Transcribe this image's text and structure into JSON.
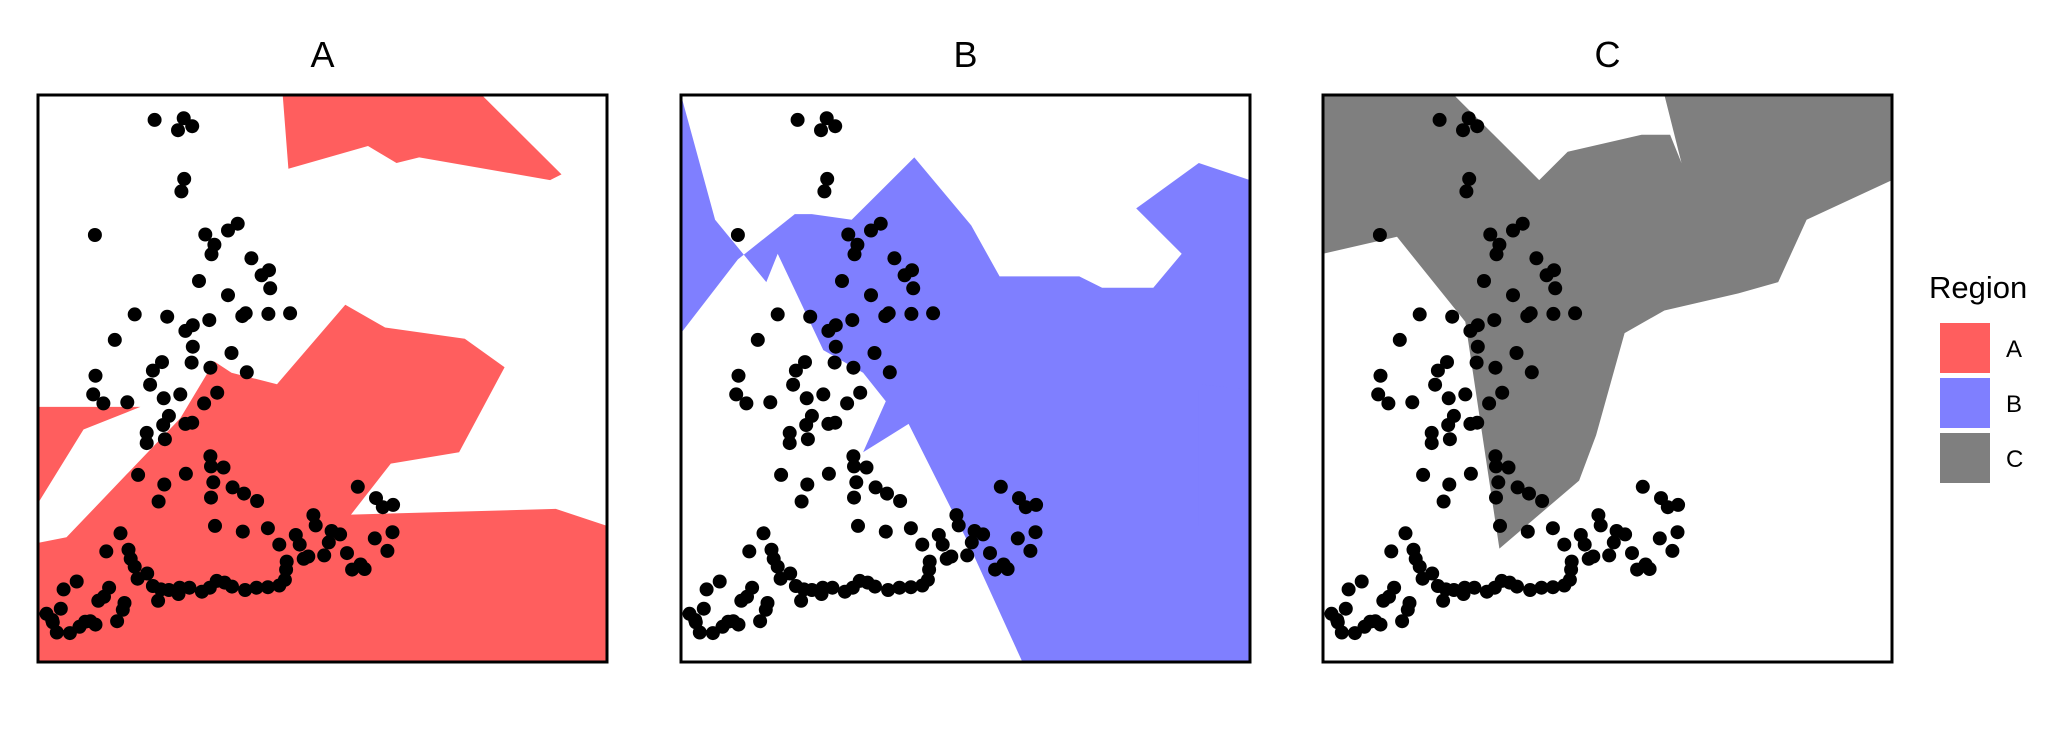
{
  "chart_data": {
    "type": "scatter",
    "panels": [
      {
        "title": "A",
        "fill_key": "A"
      },
      {
        "title": "B",
        "fill_key": "B"
      },
      {
        "title": "C",
        "fill_key": "C"
      }
    ],
    "xlim": [
      0,
      100
    ],
    "ylim": [
      0,
      100
    ],
    "grid": false,
    "legend": {
      "title": "Region",
      "position": "right",
      "items": [
        {
          "label": "A",
          "color": "#ff5e5e"
        },
        {
          "label": "B",
          "color": "#7f7fff"
        },
        {
          "label": "C",
          "color": "#7f7f7f"
        }
      ]
    },
    "regions": {
      "A": [
        [
          [
            0,
            100
          ],
          [
            0,
            45
          ],
          [
            18,
            45
          ],
          [
            8,
            41
          ],
          [
            0,
            28
          ],
          [
            0,
            21
          ],
          [
            5,
            22
          ],
          [
            25,
            43
          ],
          [
            31,
            53
          ],
          [
            34,
            51
          ],
          [
            42,
            49
          ],
          [
            54,
            63
          ],
          [
            61,
            59
          ],
          [
            75,
            57
          ],
          [
            82,
            52
          ],
          [
            74,
            37
          ],
          [
            62,
            35
          ],
          [
            55,
            26
          ],
          [
            91,
            27
          ],
          [
            100,
            24
          ],
          [
            100,
            0
          ],
          [
            0,
            0
          ]
        ],
        [
          [
            29,
            100
          ],
          [
            35,
            100
          ],
          [
            43,
            100
          ],
          [
            44,
            87
          ],
          [
            58,
            91
          ],
          [
            63,
            88
          ],
          [
            67,
            89
          ],
          [
            90,
            85
          ],
          [
            92,
            86
          ],
          [
            78,
            100
          ]
        ]
      ],
      "B": [
        [
          [
            0,
            100
          ],
          [
            0,
            58
          ],
          [
            10,
            71
          ],
          [
            20,
            79
          ],
          [
            23,
            79
          ],
          [
            30,
            78
          ],
          [
            41,
            89
          ],
          [
            51,
            77
          ],
          [
            56,
            68
          ],
          [
            70,
            68
          ],
          [
            74,
            66
          ],
          [
            83,
            66
          ],
          [
            88,
            72
          ],
          [
            80,
            80
          ],
          [
            91,
            88
          ],
          [
            100,
            85
          ],
          [
            100,
            0
          ],
          [
            60,
            0
          ],
          [
            50,
            22
          ],
          [
            40,
            42
          ],
          [
            32,
            37
          ],
          [
            36,
            46
          ],
          [
            32,
            51
          ],
          [
            25,
            55
          ],
          [
            17,
            72
          ],
          [
            15,
            67
          ],
          [
            6,
            78
          ],
          [
            0,
            100
          ]
        ],
        [
          [
            91,
            24
          ],
          [
            100,
            24
          ],
          [
            100,
            48
          ],
          [
            91,
            49
          ]
        ]
      ],
      "C": [
        [
          [
            0,
            100
          ],
          [
            23,
            100
          ],
          [
            38,
            85
          ],
          [
            43,
            90
          ],
          [
            56,
            93
          ],
          [
            61,
            93
          ],
          [
            63,
            88
          ],
          [
            60,
            100
          ],
          [
            100,
            100
          ],
          [
            100,
            85
          ],
          [
            85,
            78
          ],
          [
            80,
            67
          ],
          [
            73,
            65
          ],
          [
            60,
            62
          ],
          [
            53,
            58
          ],
          [
            48,
            40
          ],
          [
            45,
            32
          ],
          [
            31,
            20
          ],
          [
            25,
            60
          ],
          [
            13,
            75
          ],
          [
            0,
            72
          ]
        ]
      ]
    },
    "points": [
      [
        20.5,
        95.6
      ],
      [
        27.1,
        94.5
      ],
      [
        25.6,
        95.9
      ],
      [
        24.6,
        93.8
      ],
      [
        25.7,
        85.2
      ],
      [
        25.2,
        83.0
      ],
      [
        10.0,
        75.3
      ],
      [
        35.1,
        77.3
      ],
      [
        33.4,
        76.1
      ],
      [
        31.0,
        73.6
      ],
      [
        37.5,
        71.2
      ],
      [
        39.3,
        68.2
      ],
      [
        40.8,
        65.9
      ],
      [
        44.3,
        61.5
      ],
      [
        40.5,
        61.4
      ],
      [
        35.9,
        61.0
      ],
      [
        30.1,
        60.3
      ],
      [
        17.0,
        61.3
      ],
      [
        22.7,
        60.9
      ],
      [
        27.2,
        59.4
      ],
      [
        25.9,
        58.4
      ],
      [
        27.2,
        55.6
      ],
      [
        27.0,
        52.8
      ],
      [
        13.5,
        56.8
      ],
      [
        21.8,
        52.9
      ],
      [
        20.2,
        51.4
      ],
      [
        30.3,
        51.9
      ],
      [
        36.7,
        51.1
      ],
      [
        34.0,
        54.5
      ],
      [
        22.1,
        46.5
      ],
      [
        15.7,
        45.8
      ],
      [
        11.5,
        45.6
      ],
      [
        10.1,
        50.5
      ],
      [
        9.7,
        47.2
      ],
      [
        19.7,
        48.9
      ],
      [
        25.0,
        47.2
      ],
      [
        29.2,
        45.6
      ],
      [
        31.5,
        47.5
      ],
      [
        27.1,
        42.2
      ],
      [
        30.3,
        36.3
      ],
      [
        25.9,
        42.0
      ],
      [
        23.0,
        43.4
      ],
      [
        22.0,
        41.8
      ],
      [
        22.3,
        39.3
      ],
      [
        19.1,
        40.4
      ],
      [
        19.1,
        38.6
      ],
      [
        26.0,
        33.2
      ],
      [
        17.6,
        33.0
      ],
      [
        21.2,
        28.3
      ],
      [
        22.2,
        31.3
      ],
      [
        30.4,
        34.5
      ],
      [
        32.6,
        34.3
      ],
      [
        30.8,
        31.7
      ],
      [
        34.2,
        30.8
      ],
      [
        36.2,
        29.7
      ],
      [
        38.5,
        28.4
      ],
      [
        30.4,
        29.0
      ],
      [
        40.4,
        23.6
      ],
      [
        31.1,
        24.0
      ],
      [
        36.0,
        23.0
      ],
      [
        45.3,
        22.4
      ],
      [
        46.0,
        20.7
      ],
      [
        42.4,
        20.7
      ],
      [
        50.3,
        18.8
      ],
      [
        51.1,
        21.1
      ],
      [
        48.8,
        24.1
      ],
      [
        48.4,
        25.9
      ],
      [
        56.2,
        30.9
      ],
      [
        59.4,
        28.9
      ],
      [
        60.6,
        27.3
      ],
      [
        62.4,
        27.7
      ],
      [
        62.3,
        22.9
      ],
      [
        61.4,
        19.6
      ],
      [
        59.2,
        21.8
      ],
      [
        54.3,
        19.2
      ],
      [
        53.1,
        22.5
      ],
      [
        51.6,
        23.1
      ],
      [
        55.2,
        16.3
      ],
      [
        56.7,
        17.2
      ],
      [
        57.4,
        16.4
      ],
      [
        47.5,
        18.6
      ],
      [
        46.7,
        18.2
      ],
      [
        43.7,
        17.7
      ],
      [
        43.6,
        16.3
      ],
      [
        43.4,
        14.5
      ],
      [
        42.4,
        13.5
      ],
      [
        40.4,
        13.2
      ],
      [
        38.4,
        13.1
      ],
      [
        36.4,
        12.7
      ],
      [
        34.1,
        13.3
      ],
      [
        32.8,
        14.0
      ],
      [
        31.4,
        14.3
      ],
      [
        30.2,
        13.1
      ],
      [
        28.8,
        12.4
      ],
      [
        26.6,
        13.1
      ],
      [
        24.9,
        13.1
      ],
      [
        24.7,
        12.0
      ],
      [
        23.0,
        12.7
      ],
      [
        21.6,
        12.8
      ],
      [
        21.1,
        10.8
      ],
      [
        20.2,
        13.4
      ],
      [
        19.2,
        15.6
      ],
      [
        17.5,
        14.7
      ],
      [
        17.0,
        16.8
      ],
      [
        16.3,
        18.2
      ],
      [
        15.9,
        19.8
      ],
      [
        14.5,
        22.7
      ],
      [
        12.0,
        19.5
      ],
      [
        15.2,
        10.4
      ],
      [
        14.9,
        9.2
      ],
      [
        13.9,
        7.2
      ],
      [
        12.5,
        13.1
      ],
      [
        11.6,
        11.5
      ],
      [
        10.6,
        10.8
      ],
      [
        9.2,
        7.2
      ],
      [
        8.3,
        7.1
      ],
      [
        10.1,
        6.6
      ],
      [
        7.3,
        6.2
      ],
      [
        5.6,
        5.1
      ],
      [
        3.3,
        5.2
      ],
      [
        2.6,
        7.0
      ],
      [
        1.5,
        8.5
      ],
      [
        4.5,
        12.8
      ],
      [
        6.8,
        14.2
      ],
      [
        4.0,
        9.4
      ],
      [
        2.5,
        7.4
      ],
      [
        28.3,
        67.2
      ],
      [
        36.5,
        61.5
      ],
      [
        33.4,
        64.7
      ],
      [
        40.6,
        69.1
      ],
      [
        30.5,
        71.9
      ],
      [
        29.4,
        75.4
      ]
    ]
  }
}
